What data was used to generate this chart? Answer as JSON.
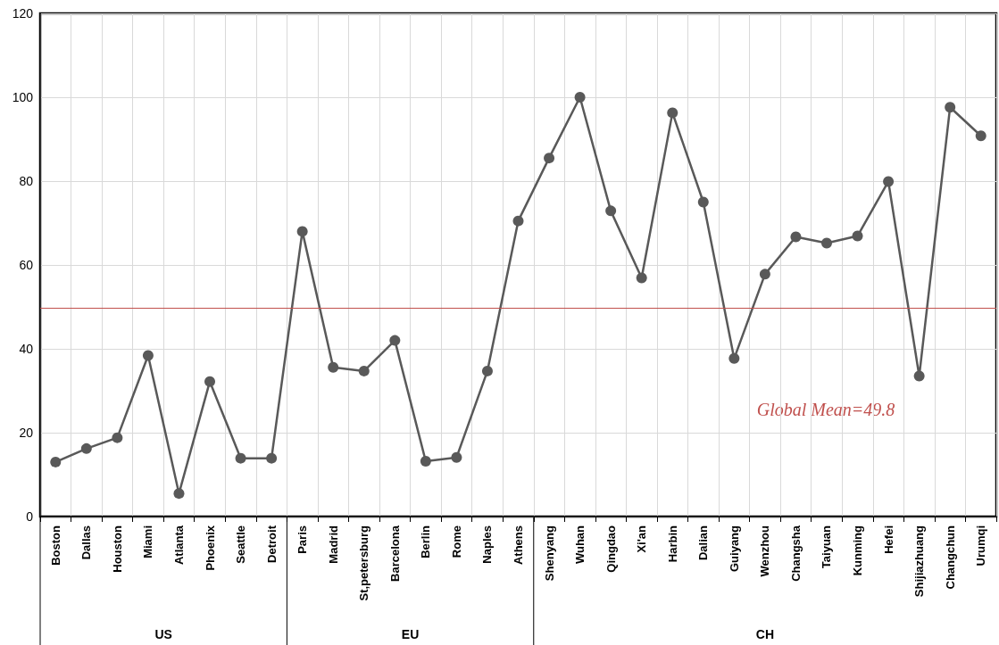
{
  "chart_data": {
    "type": "line",
    "categories": [
      "Boston",
      "Dallas",
      "Houston",
      "Miami",
      "Atlanta",
      "Phoenix",
      "Seattle",
      "Detroit",
      "Paris",
      "Madrid",
      "St,petersburg",
      "Barcelona",
      "Berlin",
      "Rome",
      "Naples",
      "Athens",
      "Shenyang",
      "Wuhan",
      "Qingdao",
      "Xi'an",
      "Harbin",
      "Dalian",
      "Guiyang",
      "Wenzhou",
      "Changsha",
      "Taiyuan",
      "Kunming",
      "Hefei",
      "Shijiazhuang",
      "Changchun",
      "Urumqi"
    ],
    "series": [
      {
        "color": "#595959",
        "values": [
          13.0,
          16.2,
          18.8,
          38.4,
          5.5,
          32.2,
          13.9,
          13.9,
          68.0,
          35.6,
          34.7,
          42.0,
          13.2,
          14.1,
          34.7,
          70.5,
          85.5,
          100,
          72.9,
          56.9,
          96.3,
          75.0,
          37.7,
          57.8,
          66.7,
          65.2,
          66.9,
          79.9,
          33.5,
          97.6,
          90.8
        ]
      }
    ],
    "ylim": [
      0,
      120
    ],
    "yticks": [
      0,
      20,
      40,
      60,
      80,
      100,
      120
    ],
    "grid": true,
    "marker": "circle",
    "line_style": "solid",
    "ref_lines": [
      {
        "axis": "y",
        "value": 49.8,
        "label": "Global Mean=49.8",
        "color": "#c0504d"
      }
    ],
    "annotations": [
      "US",
      "EU",
      "CH"
    ]
  }
}
